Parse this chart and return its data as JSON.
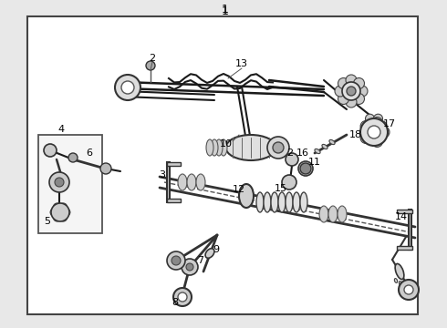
{
  "bg_color": "#e8e8e8",
  "diagram_bg": "#ffffff",
  "line_color": "#1a1a1a",
  "border_color": "#444444",
  "fig_width": 4.9,
  "fig_height": 3.6,
  "dpi": 100
}
